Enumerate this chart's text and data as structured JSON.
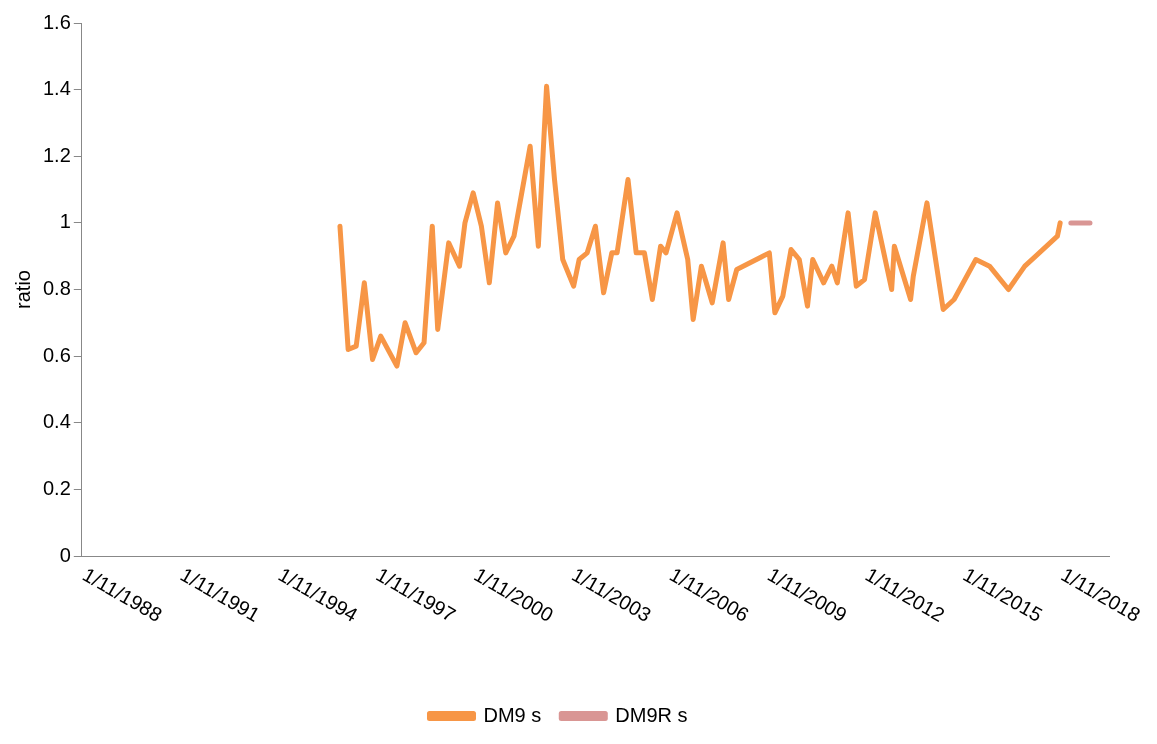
{
  "chart_data": {
    "type": "line",
    "ylabel": "ratio",
    "xlim": [
      "1988-11-01",
      "2020-05-01"
    ],
    "xticks": [
      {
        "value": "1988-11-01",
        "label": "1/11/1988"
      },
      {
        "value": "1991-11-01",
        "label": "1/11/1991"
      },
      {
        "value": "1994-11-01",
        "label": "1/11/1994"
      },
      {
        "value": "1997-11-01",
        "label": "1/11/1997"
      },
      {
        "value": "2000-11-01",
        "label": "1/11/2000"
      },
      {
        "value": "2003-11-01",
        "label": "1/11/2003"
      },
      {
        "value": "2006-11-01",
        "label": "1/11/2006"
      },
      {
        "value": "2009-11-01",
        "label": "1/11/2009"
      },
      {
        "value": "2012-11-01",
        "label": "1/11/2012"
      },
      {
        "value": "2015-11-01",
        "label": "1/11/2015"
      },
      {
        "value": "2018-11-01",
        "label": "1/11/2018"
      }
    ],
    "ylim": [
      0,
      1.6
    ],
    "yticks": [
      0,
      0.2,
      0.4,
      0.6,
      0.8,
      1,
      1.2,
      1.4,
      1.6
    ],
    "grid": false,
    "legend": "bottom",
    "marker": "none",
    "line_style": "solid",
    "series": [
      {
        "name": "DM9 s",
        "color": "#f79646",
        "x": [
          "1996-10",
          "1997-01",
          "1997-04",
          "1997-07",
          "1997-10",
          "1998-01",
          "1998-07",
          "1998-10",
          "1999-02",
          "1999-05",
          "1999-08",
          "1999-10",
          "2000-02",
          "2000-06",
          "2000-08",
          "2000-11",
          "2001-02",
          "2001-05",
          "2001-08",
          "2001-11",
          "2002-02",
          "2002-08",
          "2002-11",
          "2003-02",
          "2003-05",
          "2003-08",
          "2003-12",
          "2004-02",
          "2004-05",
          "2004-08",
          "2004-11",
          "2005-02",
          "2005-04",
          "2005-08",
          "2005-11",
          "2006-02",
          "2006-05",
          "2006-08",
          "2006-10",
          "2007-02",
          "2007-06",
          "2007-08",
          "2007-11",
          "2008-03",
          "2008-07",
          "2008-09",
          "2008-12",
          "2009-12",
          "2010-02",
          "2010-05",
          "2010-08",
          "2010-11",
          "2011-02",
          "2011-04",
          "2011-08",
          "2011-11",
          "2012-01",
          "2012-05",
          "2012-08",
          "2012-11",
          "2013-03",
          "2013-09",
          "2013-10",
          "2014-04",
          "2014-05",
          "2014-10",
          "2015-04",
          "2015-08",
          "2016-04",
          "2016-09",
          "2017-04",
          "2017-10",
          "2018-10",
          "2018-11"
        ],
        "values": [
          0.99,
          0.62,
          0.63,
          0.82,
          0.59,
          0.66,
          0.57,
          0.7,
          0.61,
          0.64,
          0.99,
          0.68,
          0.94,
          0.87,
          1,
          1.09,
          0.99,
          0.82,
          1.06,
          0.91,
          0.96,
          1.23,
          0.93,
          1.41,
          1.13,
          0.89,
          0.81,
          0.89,
          0.91,
          0.99,
          0.79,
          0.91,
          0.91,
          1.13,
          0.91,
          0.91,
          0.77,
          0.93,
          0.91,
          1.03,
          0.89,
          0.71,
          0.87,
          0.76,
          0.94,
          0.77,
          0.86,
          0.91,
          0.73,
          0.78,
          0.92,
          0.89,
          0.75,
          0.89,
          0.82,
          0.87,
          0.82,
          1.03,
          0.81,
          0.83,
          1.03,
          0.8,
          0.93,
          0.77,
          0.84,
          1.06,
          0.74,
          0.77,
          0.89,
          0.87,
          0.8,
          0.87,
          0.96,
          1
        ]
      },
      {
        "name": "DM9R s",
        "color": "#d99694",
        "x": [
          "2019-03",
          "2019-10"
        ],
        "values": [
          1,
          1
        ]
      }
    ]
  }
}
